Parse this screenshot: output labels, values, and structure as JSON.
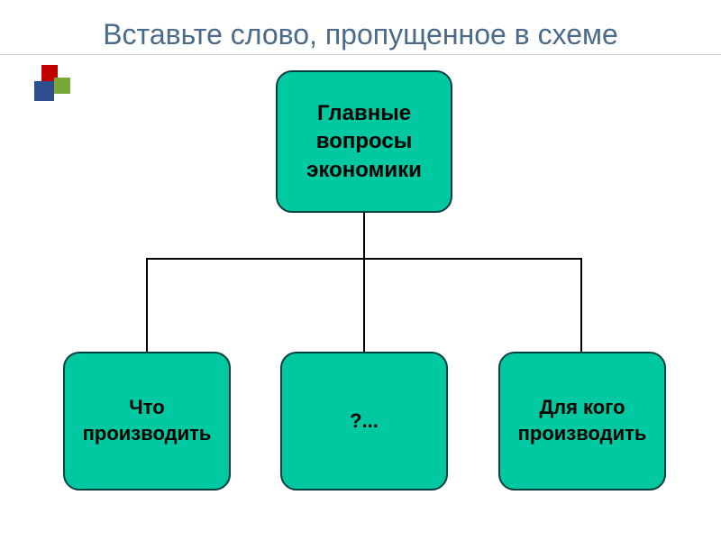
{
  "title": "Вставьте слово, пропущенное в схеме",
  "diagram": {
    "type": "tree",
    "root": {
      "label": "Главные вопросы экономики"
    },
    "children": [
      {
        "label": "Что производить"
      },
      {
        "label": "?..."
      },
      {
        "label": "Для кого производить"
      }
    ],
    "node_bg_color": "#00c8a0",
    "node_border_color": "#004040",
    "node_border_radius": 18,
    "node_text_color": "#000000",
    "connector_color": "#000000",
    "title_color": "#4a6b8a",
    "title_fontsize": 32,
    "node_fontsize": 24,
    "child_fontsize": 22,
    "background_color": "#ffffff",
    "decoration_colors": {
      "red": "#c00000",
      "green": "#7aa838",
      "blue": "#2e4e8e"
    }
  }
}
